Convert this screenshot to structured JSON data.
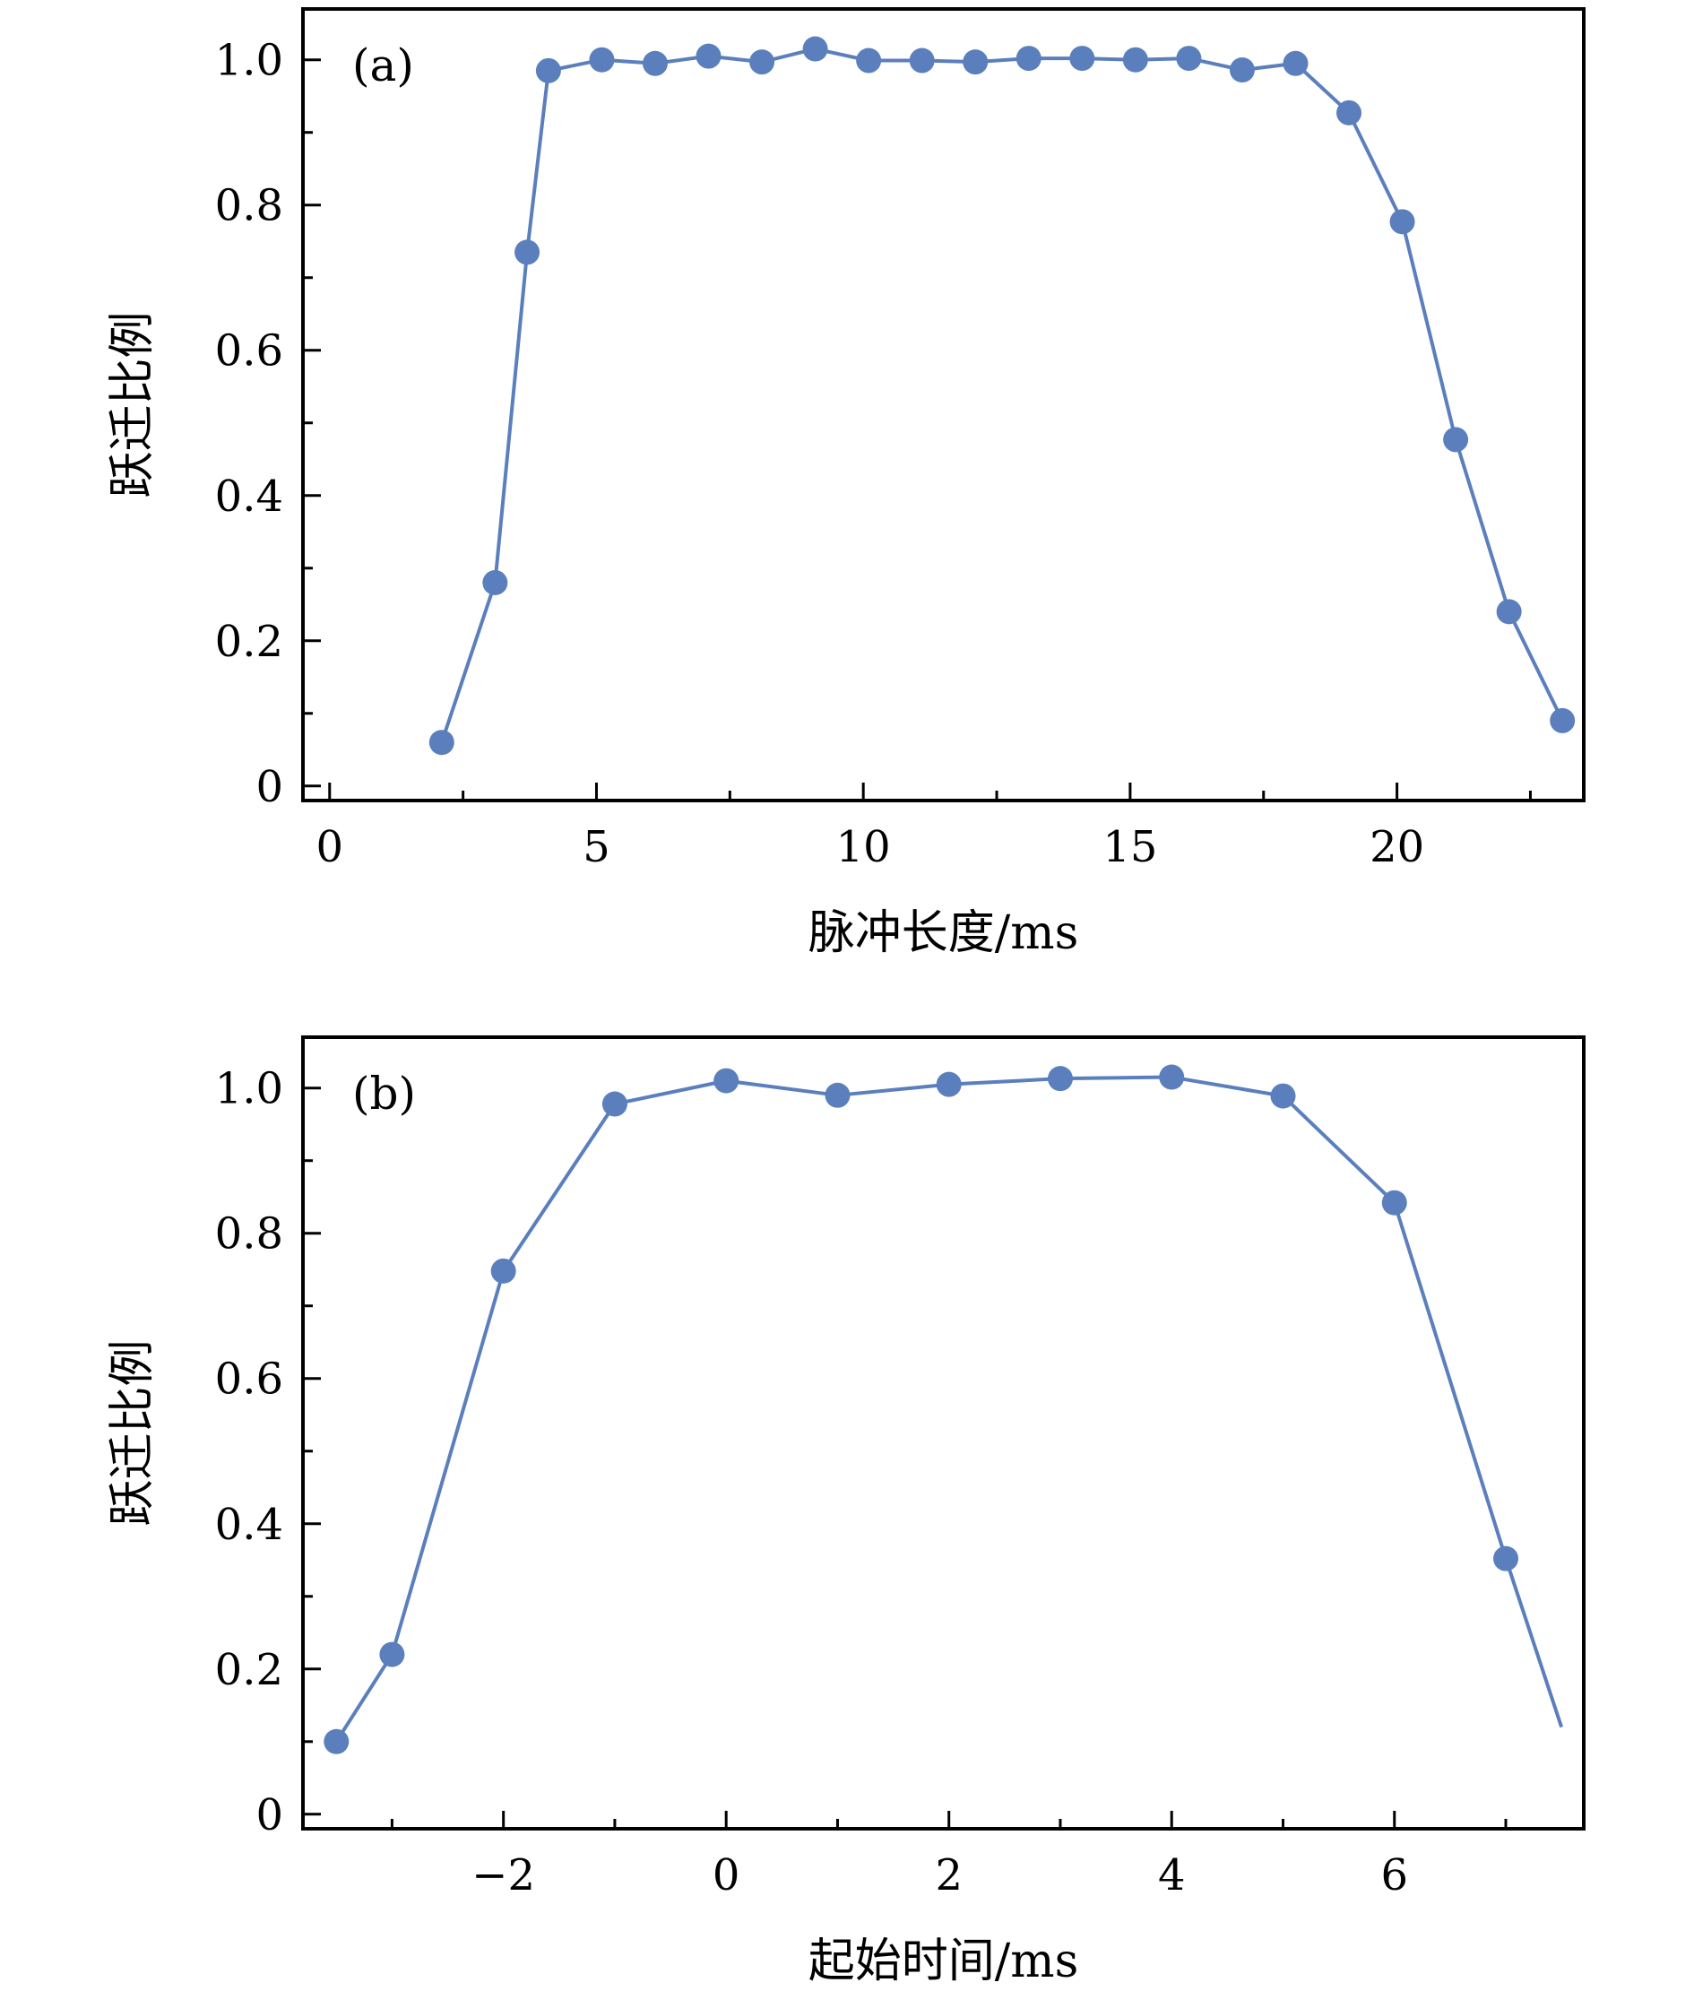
{
  "chart_data": [
    {
      "type": "line",
      "panel_label": "(a)",
      "title": "",
      "xlabel": "脉冲长度/ms",
      "ylabel": "跃迁比例",
      "xlim": [
        -0.5,
        23.5
      ],
      "ylim": [
        -0.02,
        1.07
      ],
      "xticks": [
        0,
        5,
        10,
        15,
        20
      ],
      "xtick_labels": [
        "0",
        "5",
        "10",
        "15",
        "20"
      ],
      "x_minor_ticks": [
        2.5,
        7.5,
        12.5,
        17.5,
        22.5
      ],
      "yticks": [
        0,
        0.2,
        0.4,
        0.6,
        0.8,
        1.0
      ],
      "ytick_labels": [
        "0",
        "0.2",
        "0.4",
        "0.6",
        "0.8",
        "1.0"
      ],
      "y_minor_ticks": [
        0.1,
        0.3,
        0.5,
        0.7,
        0.9
      ],
      "grid": false,
      "series": [
        {
          "color": "#5b7fbd",
          "x": [
            2.1,
            3.1,
            3.7,
            4.1,
            5.1,
            6.1,
            7.1,
            8.1,
            9.1,
            10.1,
            11.1,
            12.1,
            13.1,
            14.1,
            15.1,
            16.1,
            17.1,
            18.1,
            19.1,
            20.1,
            21.1,
            22.1,
            23.1
          ],
          "y": [
            0.06,
            0.28,
            0.735,
            0.985,
            1.0,
            0.995,
            1.005,
            0.997,
            1.015,
            0.999,
            0.999,
            0.997,
            1.002,
            1.002,
            1.0,
            1.002,
            0.986,
            0.995,
            0.927,
            0.777,
            0.477,
            0.24,
            0.09
          ]
        }
      ]
    },
    {
      "type": "line",
      "panel_label": "(b)",
      "title": "",
      "xlabel": "起始时间/ms",
      "ylabel": "跃迁比例",
      "xlim": [
        -3.8,
        7.7
      ],
      "ylim": [
        -0.02,
        1.07
      ],
      "xticks": [
        -2,
        0,
        2,
        4,
        6
      ],
      "xtick_labels": [
        "−2",
        "0",
        "2",
        "4",
        "6"
      ],
      "x_minor_ticks": [
        -3,
        -1,
        1,
        3,
        5,
        7
      ],
      "yticks": [
        0,
        0.2,
        0.4,
        0.6,
        0.8,
        1.0
      ],
      "ytick_labels": [
        "0",
        "0.2",
        "0.4",
        "0.6",
        "0.8",
        "1.0"
      ],
      "y_minor_ticks": [
        0.1,
        0.3,
        0.5,
        0.7,
        0.9
      ],
      "grid": false,
      "series": [
        {
          "color": "#5b7fbd",
          "x": [
            -3.5,
            -3.0,
            -2.0,
            -1.0,
            0.0,
            1.0,
            2.0,
            3.0,
            4.0,
            5.0,
            6.0,
            7.0
          ],
          "y": [
            0.1,
            0.22,
            0.748,
            0.978,
            1.01,
            0.99,
            1.005,
            1.013,
            1.015,
            0.989,
            0.842,
            0.352
          ],
          "line_extension": {
            "x": 7.5,
            "y": 0.12
          }
        }
      ]
    }
  ]
}
